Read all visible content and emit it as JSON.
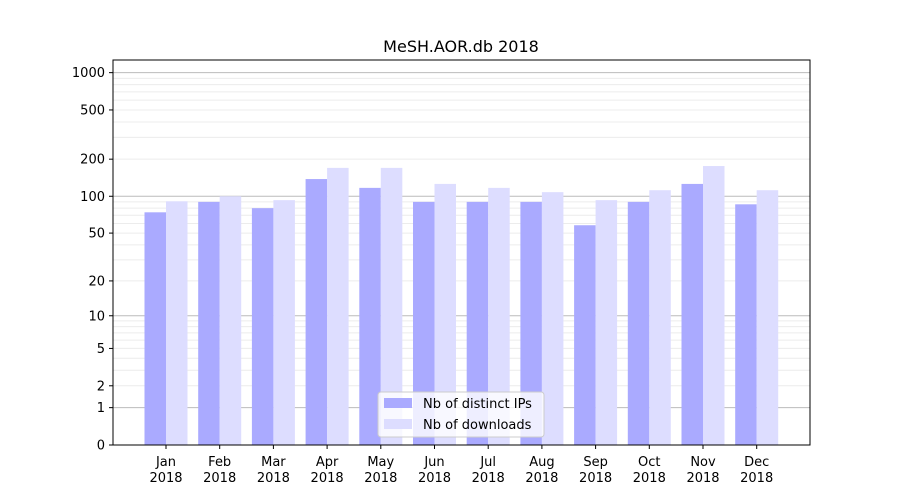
{
  "chart_data": {
    "type": "bar",
    "title": "MeSH.AOR.db 2018",
    "xlabel": "",
    "ylabel": "",
    "yscale": "log(y+1)",
    "ylim": [
      0,
      1200
    ],
    "yticks": [
      0,
      1,
      2,
      5,
      10,
      20,
      50,
      100,
      200,
      500,
      1000
    ],
    "grid": true,
    "legend_position": "lower-center",
    "categories": [
      "Jan\n2018",
      "Feb\n2018",
      "Mar\n2018",
      "Apr\n2018",
      "May\n2018",
      "Jun\n2018",
      "Jul\n2018",
      "Aug\n2018",
      "Sep\n2018",
      "Oct\n2018",
      "Nov\n2018",
      "Dec\n2018"
    ],
    "series": [
      {
        "name": "Nb of distinct IPs",
        "color": "#aaaaff",
        "values": [
          74,
          90,
          80,
          138,
          117,
          90,
          90,
          90,
          58,
          90,
          126,
          86
        ]
      },
      {
        "name": "Nb of downloads",
        "color": "#ddddff",
        "values": [
          91,
          100,
          93,
          170,
          170,
          126,
          117,
          108,
          93,
          112,
          176,
          112
        ]
      }
    ]
  }
}
